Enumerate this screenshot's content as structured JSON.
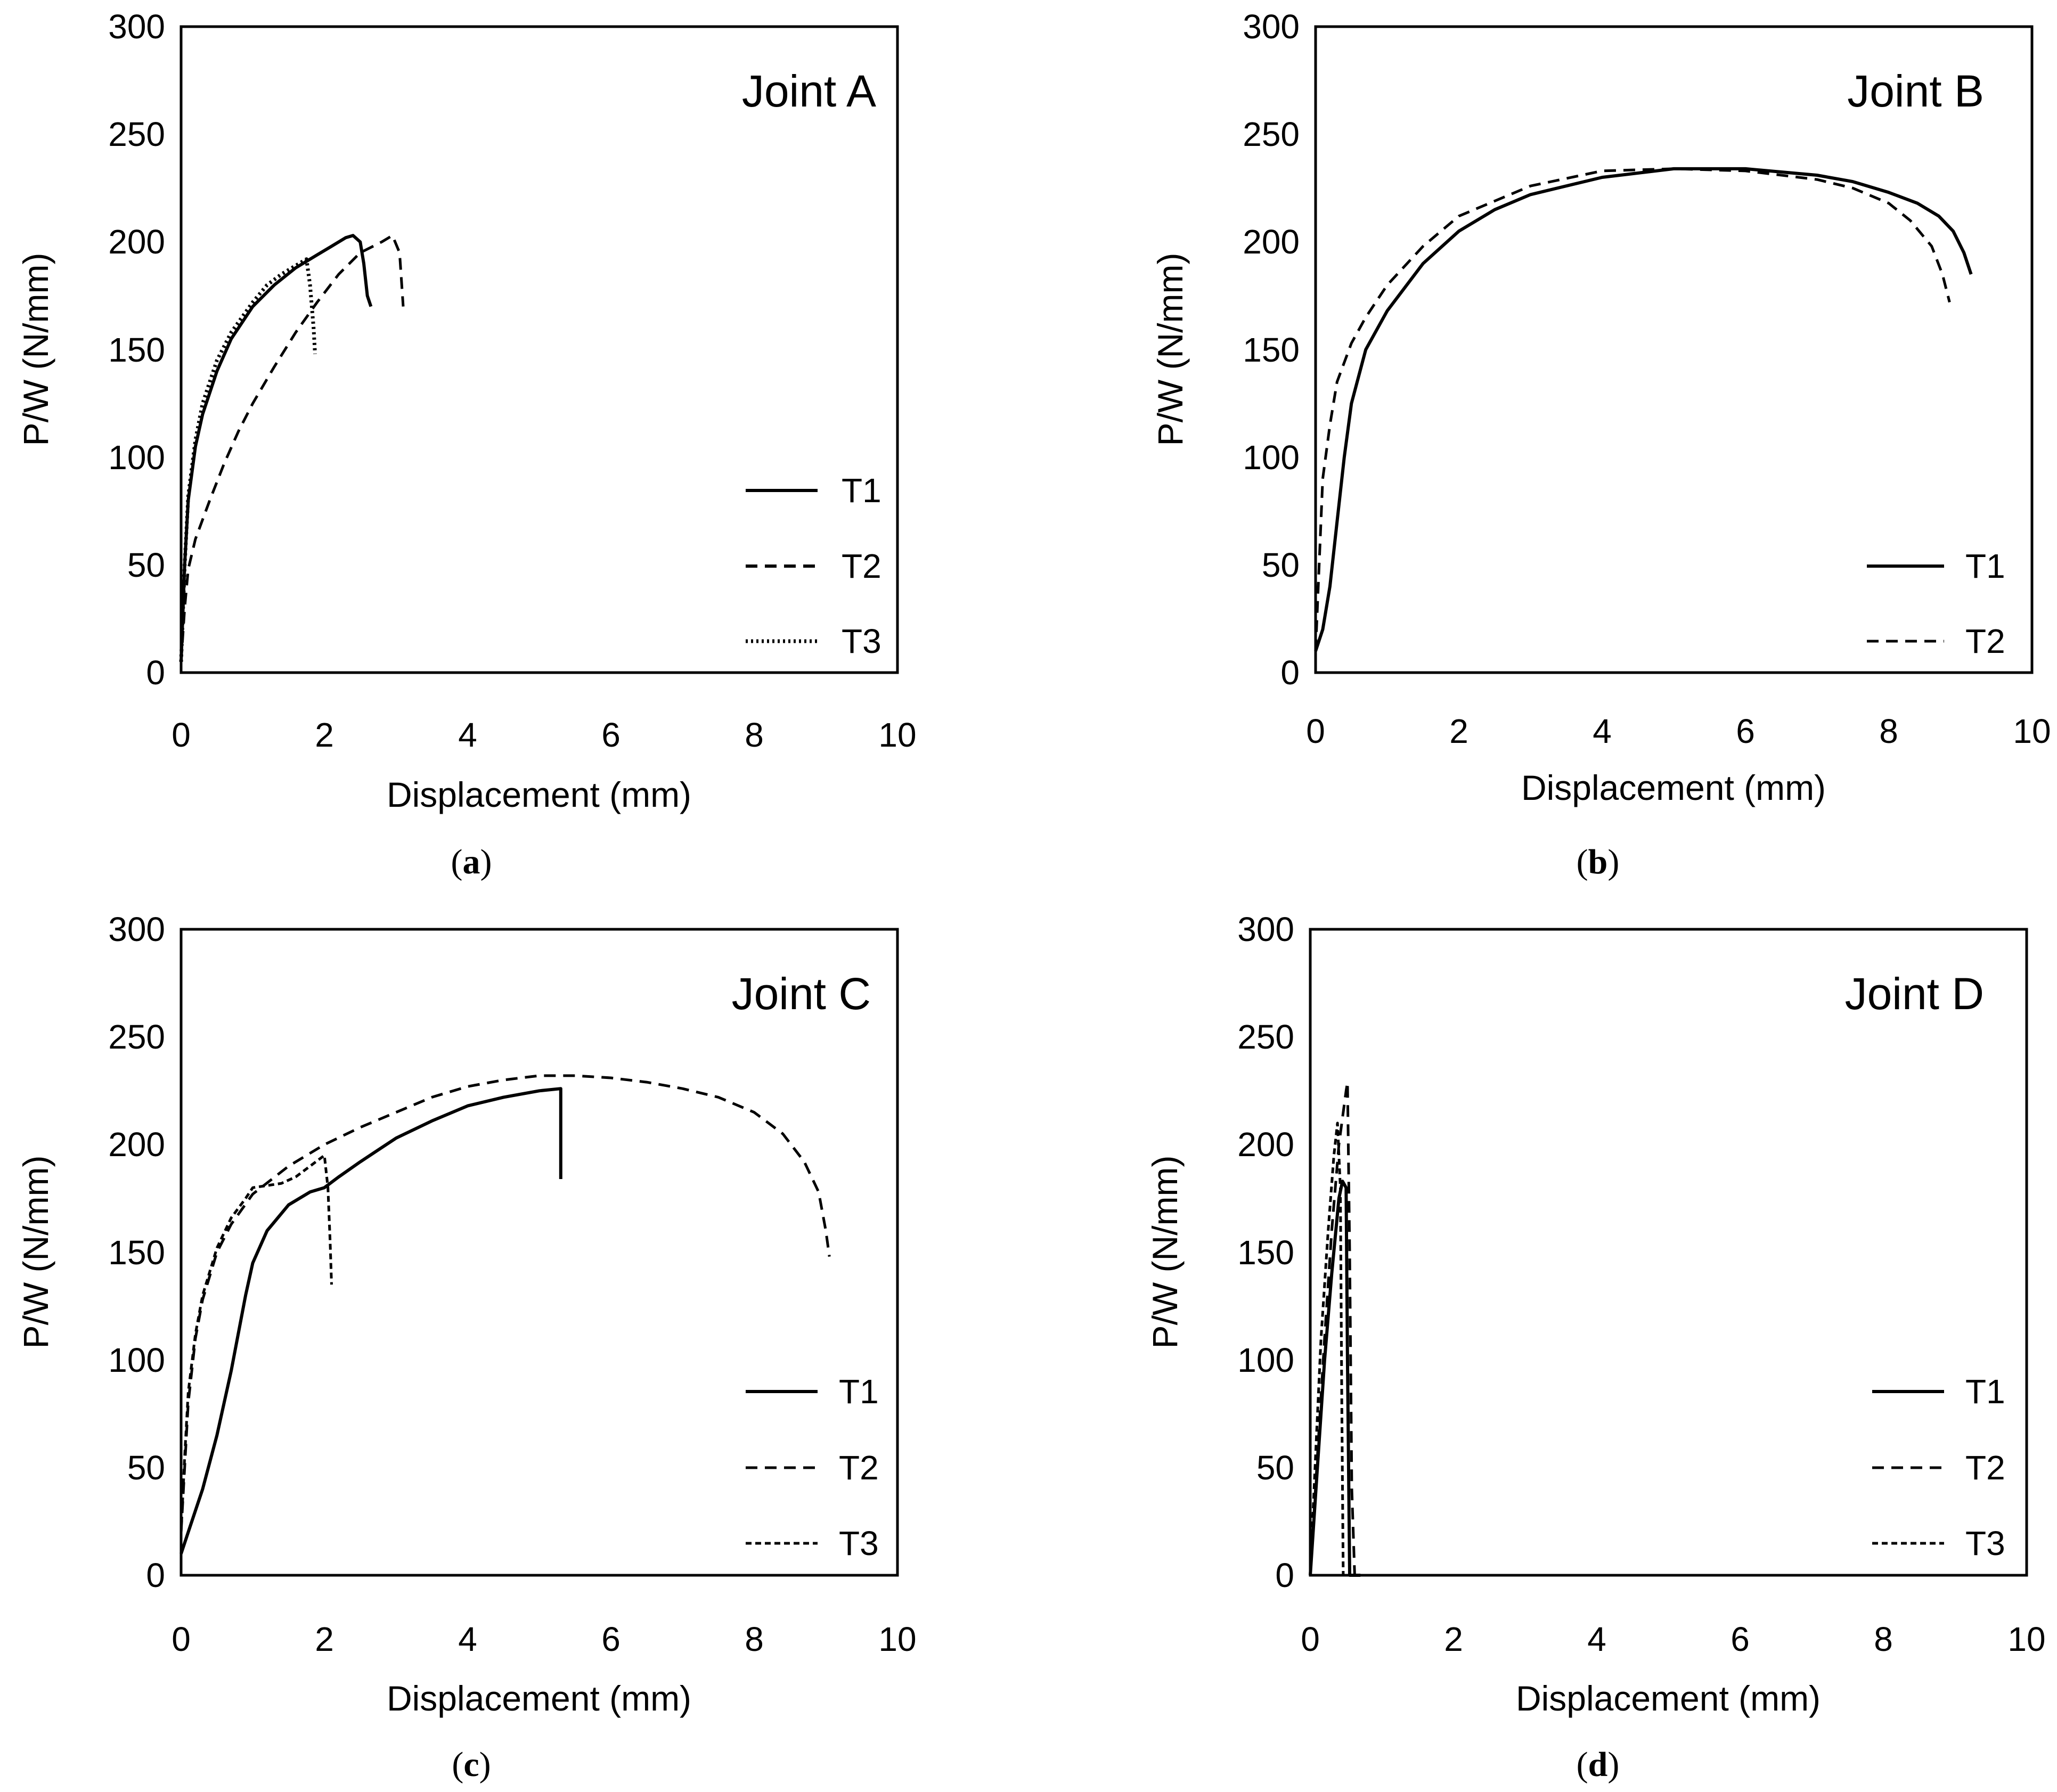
{
  "chart_data": [
    {
      "type": "line",
      "title": "Joint A",
      "caption": "a",
      "xlabel": "Displacement (mm)",
      "ylabel": "P/W (N/mm)",
      "xlim": [
        0,
        10
      ],
      "ylim": [
        0,
        300
      ],
      "xticks": [
        0,
        2,
        4,
        6,
        8,
        10
      ],
      "yticks": [
        0,
        50,
        100,
        150,
        200,
        250,
        300
      ],
      "legend": "bottom-right",
      "series": [
        {
          "name": "T1",
          "style": "solid",
          "x": [
            0,
            0.05,
            0.1,
            0.2,
            0.3,
            0.5,
            0.7,
            1.0,
            1.3,
            1.6,
            1.9,
            2.1,
            2.3,
            2.4,
            2.5,
            2.55,
            2.6,
            2.65
          ],
          "y": [
            5,
            50,
            80,
            105,
            120,
            140,
            155,
            170,
            180,
            188,
            194,
            198,
            202,
            203,
            200,
            190,
            175,
            170
          ]
        },
        {
          "name": "T2",
          "style": "dashed",
          "x": [
            0,
            0.05,
            0.1,
            0.2,
            0.4,
            0.6,
            0.8,
            1.0,
            1.3,
            1.6,
            1.9,
            2.2,
            2.5,
            2.8,
            2.95,
            3.05,
            3.08,
            3.1
          ],
          "y": [
            5,
            30,
            48,
            62,
            80,
            97,
            112,
            125,
            142,
            158,
            172,
            185,
            195,
            200,
            203,
            195,
            180,
            170
          ]
        },
        {
          "name": "T3",
          "style": "dotted",
          "x": [
            0,
            0.05,
            0.1,
            0.2,
            0.3,
            0.5,
            0.7,
            1.0,
            1.2,
            1.4,
            1.6,
            1.75,
            1.8,
            1.85,
            1.87
          ],
          "y": [
            5,
            50,
            82,
            108,
            125,
            145,
            158,
            172,
            180,
            185,
            189,
            192,
            180,
            160,
            148
          ]
        }
      ]
    },
    {
      "type": "line",
      "title": "Joint B",
      "caption": "b",
      "xlabel": "Displacement (mm)",
      "ylabel": "P/W (N/mm)",
      "xlim": [
        0,
        10
      ],
      "ylim": [
        0,
        300
      ],
      "xticks": [
        0,
        2,
        4,
        6,
        8,
        10
      ],
      "yticks": [
        0,
        50,
        100,
        150,
        200,
        250,
        300
      ],
      "legend": "bottom-right",
      "series": [
        {
          "name": "T1",
          "style": "solid",
          "x": [
            0,
            0.1,
            0.2,
            0.3,
            0.4,
            0.5,
            0.7,
            1.0,
            1.5,
            2.0,
            2.5,
            3.0,
            4.0,
            5.0,
            6.0,
            7.0,
            7.5,
            8.0,
            8.4,
            8.7,
            8.9,
            9.05,
            9.15
          ],
          "y": [
            10,
            20,
            40,
            70,
            100,
            125,
            150,
            168,
            190,
            205,
            215,
            222,
            230,
            234,
            234,
            231,
            228,
            223,
            218,
            212,
            205,
            195,
            185
          ]
        },
        {
          "name": "T2",
          "style": "dashed",
          "x": [
            0,
            0.05,
            0.1,
            0.2,
            0.3,
            0.5,
            0.7,
            1.0,
            1.5,
            2.0,
            3.0,
            4.0,
            5.0,
            6.0,
            7.0,
            7.5,
            8.0,
            8.3,
            8.6,
            8.75,
            8.85
          ],
          "y": [
            10,
            50,
            90,
            115,
            135,
            153,
            165,
            180,
            198,
            212,
            226,
            233,
            234,
            233,
            229,
            225,
            218,
            210,
            198,
            185,
            172
          ]
        }
      ]
    },
    {
      "type": "line",
      "title": "Joint C",
      "caption": "c",
      "xlabel": "Displacement (mm)",
      "ylabel": "P/W (N/mm)",
      "xlim": [
        0,
        10
      ],
      "ylim": [
        0,
        300
      ],
      "xticks": [
        0,
        2,
        4,
        6,
        8,
        10
      ],
      "yticks": [
        0,
        50,
        100,
        150,
        200,
        250,
        300
      ],
      "legend": "bottom-right",
      "series": [
        {
          "name": "T1",
          "style": "solid",
          "x": [
            0,
            0.1,
            0.3,
            0.5,
            0.7,
            0.9,
            1.0,
            1.2,
            1.5,
            1.8,
            2.0,
            2.2,
            2.5,
            3.0,
            3.5,
            4.0,
            4.5,
            5.0,
            5.3,
            5.3
          ],
          "y": [
            10,
            20,
            40,
            65,
            95,
            130,
            145,
            160,
            172,
            178,
            180,
            185,
            192,
            203,
            211,
            218,
            222,
            225,
            226,
            184
          ]
        },
        {
          "name": "T2",
          "style": "dashed",
          "x": [
            0,
            0.05,
            0.1,
            0.2,
            0.3,
            0.5,
            0.7,
            1.0,
            1.5,
            2.0,
            2.5,
            3.0,
            3.5,
            4.0,
            4.5,
            5.0,
            5.5,
            6.0,
            6.5,
            7.0,
            7.5,
            8.0,
            8.4,
            8.7,
            8.9,
            9.0,
            9.05
          ],
          "y": [
            20,
            50,
            80,
            110,
            128,
            150,
            163,
            177,
            190,
            200,
            208,
            215,
            222,
            227,
            230,
            232,
            232,
            231,
            229,
            226,
            222,
            215,
            205,
            192,
            178,
            160,
            148
          ]
        },
        {
          "name": "T3",
          "style": "short-dashed",
          "x": [
            0,
            0.05,
            0.1,
            0.2,
            0.3,
            0.5,
            0.7,
            0.9,
            1.0,
            1.2,
            1.4,
            1.6,
            1.8,
            2.0,
            2.05,
            2.08,
            2.1
          ],
          "y": [
            20,
            55,
            85,
            112,
            130,
            152,
            166,
            175,
            180,
            181,
            182,
            185,
            190,
            195,
            180,
            155,
            135
          ]
        }
      ]
    },
    {
      "type": "line",
      "title": "Joint D",
      "caption": "d",
      "xlabel": "Displacement (mm)",
      "ylabel": "P/W (N/mm)",
      "xlim": [
        0,
        10
      ],
      "ylim": [
        0,
        300
      ],
      "xticks": [
        0,
        2,
        4,
        6,
        8,
        10
      ],
      "yticks": [
        0,
        50,
        100,
        150,
        200,
        250,
        300
      ],
      "legend": "bottom-right",
      "series": [
        {
          "name": "T1",
          "style": "solid",
          "x": [
            0,
            0.1,
            0.2,
            0.3,
            0.4,
            0.45,
            0.5,
            0.52,
            0.55,
            0.6,
            0.7
          ],
          "y": [
            0,
            50,
            100,
            140,
            175,
            183,
            180,
            100,
            0,
            0,
            0
          ]
        },
        {
          "name": "T2",
          "style": "dashed",
          "x": [
            0,
            0.1,
            0.2,
            0.3,
            0.4,
            0.5,
            0.52,
            0.55,
            0.58,
            0.62
          ],
          "y": [
            0,
            55,
            110,
            160,
            200,
            225,
            229,
            150,
            40,
            0
          ]
        },
        {
          "name": "T3",
          "style": "short-dashed",
          "x": [
            0,
            0.08,
            0.15,
            0.25,
            0.33,
            0.38,
            0.42,
            0.44,
            0.46
          ],
          "y": [
            0,
            60,
            110,
            160,
            195,
            210,
            180,
            80,
            0
          ]
        }
      ]
    }
  ]
}
